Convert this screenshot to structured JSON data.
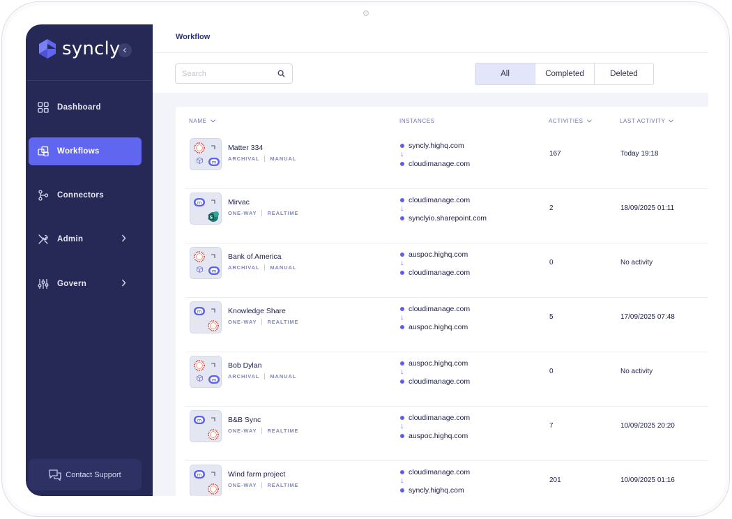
{
  "app": {
    "logo_text": "syncly",
    "page_title": "Workflow"
  },
  "sidebar": {
    "items": [
      {
        "label": "Dashboard",
        "icon": "dashboard-grid-icon",
        "active": false,
        "has_chevron": false
      },
      {
        "label": "Workflows",
        "icon": "workflows-icon",
        "active": true,
        "has_chevron": false
      },
      {
        "label": "Connectors",
        "icon": "connectors-icon",
        "active": false,
        "has_chevron": false
      },
      {
        "label": "Admin",
        "icon": "admin-tools-icon",
        "active": false,
        "has_chevron": true
      },
      {
        "label": "Govern",
        "icon": "govern-sliders-icon",
        "active": false,
        "has_chevron": true
      }
    ],
    "support_label": "Contact Support"
  },
  "toolbar": {
    "search_placeholder": "Search",
    "search_value": "",
    "filters": [
      "All",
      "Completed",
      "Deleted"
    ],
    "selected_filter": "All"
  },
  "table": {
    "columns": {
      "name": "NAME",
      "instances": "INSTANCES",
      "activities": "ACTIVITIES",
      "last_activity": "LAST ACTIVITY"
    },
    "rows": [
      {
        "name": "Matter 334",
        "tags": [
          "ARCHIVAL",
          "MANUAL"
        ],
        "source": "syncly.highq.com",
        "target": "cloudimanage.com",
        "activities": "167",
        "last_activity": "Today 19:18",
        "thumb": "archival"
      },
      {
        "name": "Mirvac",
        "tags": [
          "ONE-WAY",
          "REALTIME"
        ],
        "source": "cloudimanage.com",
        "target": "synclyio.sharepoint.com",
        "activities": "2",
        "last_activity": "18/09/2025 01:11",
        "thumb": "sharepoint"
      },
      {
        "name": "Bank of America",
        "tags": [
          "ARCHIVAL",
          "MANUAL"
        ],
        "source": "auspoc.highq.com",
        "target": "cloudimanage.com",
        "activities": "0",
        "last_activity": "No activity",
        "thumb": "archival"
      },
      {
        "name": "Knowledge Share",
        "tags": [
          "ONE-WAY",
          "REALTIME"
        ],
        "source": "cloudimanage.com",
        "target": "auspoc.highq.com",
        "activities": "5",
        "last_activity": "17/09/2025 07:48",
        "thumb": "oneway"
      },
      {
        "name": "Bob Dylan",
        "tags": [
          "ARCHIVAL",
          "MANUAL"
        ],
        "source": "auspoc.highq.com",
        "target": "cloudimanage.com",
        "activities": "0",
        "last_activity": "No activity",
        "thumb": "archival"
      },
      {
        "name": "B&B Sync",
        "tags": [
          "ONE-WAY",
          "REALTIME"
        ],
        "source": "cloudimanage.com",
        "target": "auspoc.highq.com",
        "activities": "7",
        "last_activity": "10/09/2025 20:20",
        "thumb": "oneway"
      },
      {
        "name": "Wind farm project",
        "tags": [
          "ONE-WAY",
          "REALTIME"
        ],
        "source": "cloudimanage.com",
        "target": "syncly.highq.com",
        "activities": "201",
        "last_activity": "10/09/2025 01:16",
        "thumb": "oneway"
      }
    ]
  },
  "colors": {
    "sidebar_bg": "#262956",
    "accent": "#6166f1",
    "text_dark": "#20234a",
    "tag_color": "#7f86c0"
  }
}
